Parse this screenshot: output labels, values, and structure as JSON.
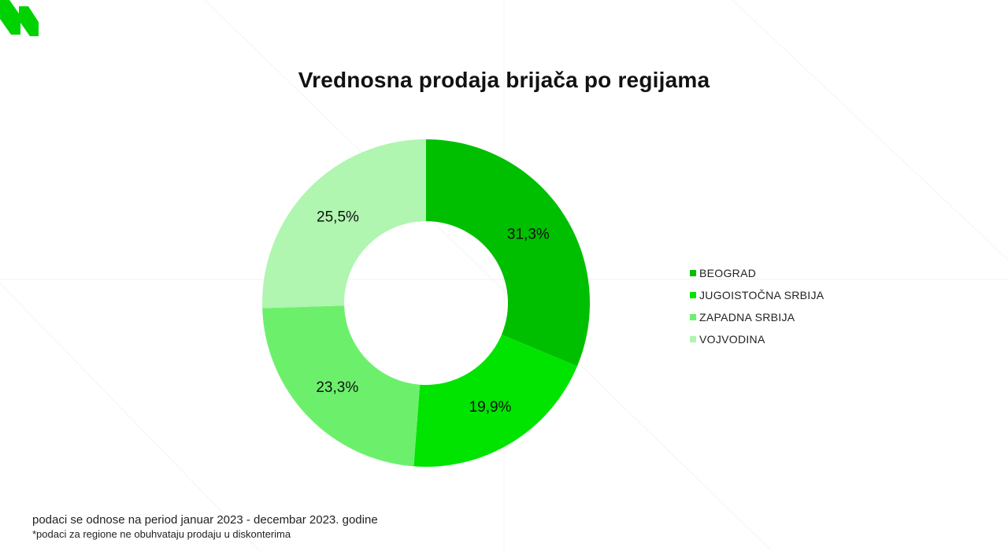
{
  "chart_data": {
    "type": "pie",
    "title": "Vrednosna prodaja brijača po regijama",
    "categories": [
      "BEOGRAD",
      "JUGOISTOČNA SRBIJA",
      "ZAPADNA SRBIJA",
      "VOJVODINA"
    ],
    "values": [
      31.3,
      19.9,
      23.3,
      25.5
    ],
    "value_labels": [
      "31,3%",
      "19,9%",
      "23,3%",
      "25,5%"
    ],
    "colors": [
      "#00bf00",
      "#00e400",
      "#6cf06c",
      "#b0f5b0"
    ],
    "donut": true,
    "legend_position": "right"
  },
  "footnotes": {
    "period": "podaci se odnose na period januar 2023 - decembar 2023. godine",
    "note": "*podaci za regione ne obuhvataju prodaju u diskonterima"
  },
  "logo": {
    "icon": "brand-logo-icon",
    "color": "#00d100"
  }
}
